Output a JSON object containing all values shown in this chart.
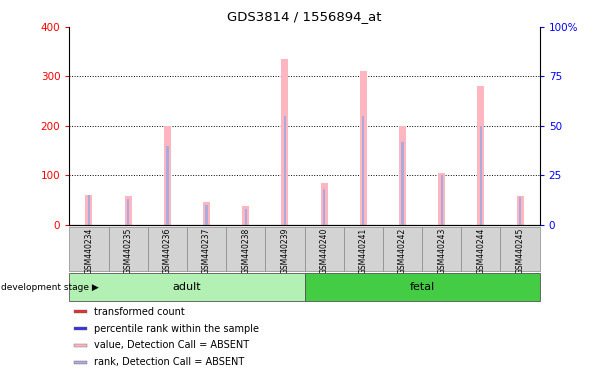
{
  "title": "GDS3814 / 1556894_at",
  "samples": [
    "GSM440234",
    "GSM440235",
    "GSM440236",
    "GSM440237",
    "GSM440238",
    "GSM440239",
    "GSM440240",
    "GSM440241",
    "GSM440242",
    "GSM440243",
    "GSM440244",
    "GSM440245"
  ],
  "absent_value": [
    60,
    58,
    200,
    45,
    38,
    335,
    85,
    310,
    200,
    105,
    280,
    58
  ],
  "absent_rank_pct": [
    15,
    13,
    40,
    10,
    8,
    55,
    18,
    55,
    42,
    25,
    50,
    14
  ],
  "ylim_left": [
    0,
    400
  ],
  "ylim_right": [
    0,
    100
  ],
  "yticks_left": [
    0,
    100,
    200,
    300,
    400
  ],
  "yticks_right": [
    0,
    25,
    50,
    75,
    100
  ],
  "groups": [
    {
      "label": "adult",
      "start": 0,
      "end": 6,
      "color": "#b3f0b3"
    },
    {
      "label": "fetal",
      "start": 6,
      "end": 12,
      "color": "#44cc44"
    }
  ],
  "absent_bar_color": "#FFB6C1",
  "absent_rank_color": "#AAAADD",
  "label_area_color": "#D3D3D3",
  "dev_stage_label": "development stage",
  "legend_items": [
    {
      "label": "transformed count",
      "color": "#DD3333"
    },
    {
      "label": "percentile rank within the sample",
      "color": "#3333DD"
    },
    {
      "label": "value, Detection Call = ABSENT",
      "color": "#FFB6C1"
    },
    {
      "label": "rank, Detection Call = ABSENT",
      "color": "#AAAADD"
    }
  ]
}
